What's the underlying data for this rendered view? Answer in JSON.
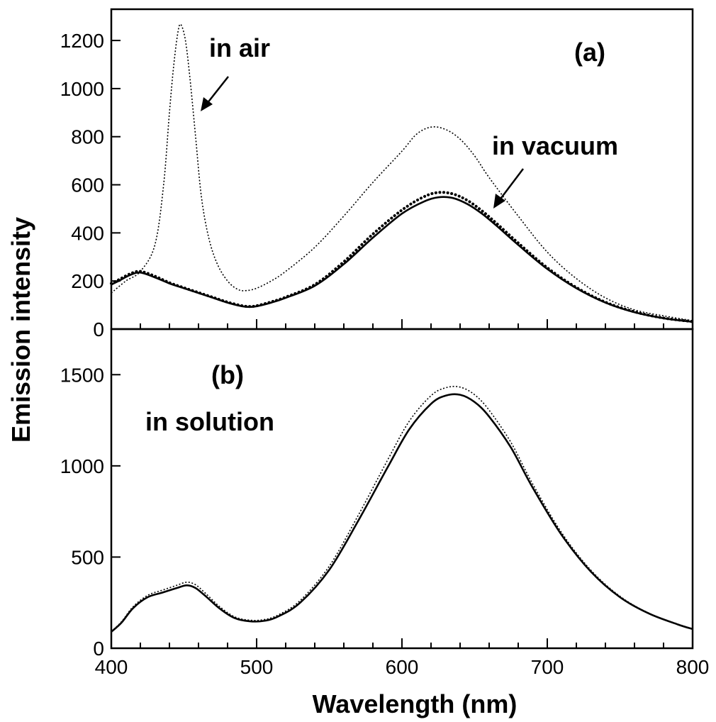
{
  "chart_data": [
    {
      "panel": "(a)",
      "type": "line",
      "xlabel": "Wavelength (nm)",
      "ylabel": "Emission intensity",
      "xlim": [
        400,
        800
      ],
      "ylim": [
        0,
        1330
      ],
      "xticks": [
        "400",
        "500",
        "600",
        "700",
        "800"
      ],
      "yticks": [
        "0",
        "200",
        "400",
        "600",
        "800",
        "1000",
        "1200"
      ],
      "annotations": [
        "(a)",
        "in air",
        "in vacuum"
      ],
      "series": [
        {
          "style": "fine-dotted",
          "points": [
            [
              400,
              150
            ],
            [
              410,
              200
            ],
            [
              420,
              240
            ],
            [
              430,
              350
            ],
            [
              436,
              600
            ],
            [
              440,
              900
            ],
            [
              443,
              1100
            ],
            [
              446,
              1240
            ],
            [
              448,
              1265
            ],
            [
              451,
              1200
            ],
            [
              454,
              1050
            ],
            [
              458,
              800
            ],
            [
              462,
              550
            ],
            [
              467,
              380
            ],
            [
              473,
              270
            ],
            [
              480,
              200
            ],
            [
              487,
              165
            ],
            [
              493,
              160
            ],
            [
              500,
              170
            ],
            [
              510,
              200
            ],
            [
              520,
              240
            ],
            [
              540,
              340
            ],
            [
              560,
              470
            ],
            [
              580,
              610
            ],
            [
              600,
              740
            ],
            [
              610,
              810
            ],
            [
              620,
              840
            ],
            [
              630,
              830
            ],
            [
              640,
              790
            ],
            [
              650,
              720
            ],
            [
              660,
              630
            ],
            [
              680,
              470
            ],
            [
              700,
              320
            ],
            [
              720,
              210
            ],
            [
              740,
              130
            ],
            [
              760,
              80
            ],
            [
              780,
              55
            ],
            [
              800,
              35
            ]
          ]
        },
        {
          "style": "solid",
          "points": [
            [
              400,
              185
            ],
            [
              405,
              200
            ],
            [
              413,
              225
            ],
            [
              420,
              235
            ],
            [
              430,
              215
            ],
            [
              440,
              190
            ],
            [
              450,
              170
            ],
            [
              460,
              150
            ],
            [
              470,
              130
            ],
            [
              480,
              110
            ],
            [
              490,
              95
            ],
            [
              495,
              92
            ],
            [
              500,
              95
            ],
            [
              510,
              110
            ],
            [
              520,
              130
            ],
            [
              540,
              180
            ],
            [
              560,
              270
            ],
            [
              580,
              380
            ],
            [
              600,
              480
            ],
            [
              615,
              530
            ],
            [
              625,
              548
            ],
            [
              635,
              545
            ],
            [
              645,
              520
            ],
            [
              655,
              480
            ],
            [
              665,
              430
            ],
            [
              680,
              350
            ],
            [
              700,
              250
            ],
            [
              720,
              170
            ],
            [
              740,
              110
            ],
            [
              760,
              70
            ],
            [
              780,
              45
            ],
            [
              800,
              30
            ]
          ]
        },
        {
          "style": "heavy-dotted",
          "points": [
            [
              400,
              190
            ],
            [
              405,
              205
            ],
            [
              413,
              230
            ],
            [
              420,
              240
            ],
            [
              430,
              220
            ],
            [
              440,
              193
            ],
            [
              450,
              172
            ],
            [
              460,
              152
            ],
            [
              470,
              132
            ],
            [
              480,
              112
            ],
            [
              490,
              97
            ],
            [
              495,
              94
            ],
            [
              500,
              97
            ],
            [
              510,
              113
            ],
            [
              520,
              133
            ],
            [
              540,
              185
            ],
            [
              560,
              280
            ],
            [
              580,
              395
            ],
            [
              600,
              495
            ],
            [
              615,
              550
            ],
            [
              625,
              568
            ],
            [
              635,
              562
            ],
            [
              645,
              535
            ],
            [
              655,
              492
            ],
            [
              665,
              440
            ],
            [
              680,
              358
            ],
            [
              700,
              255
            ],
            [
              720,
              173
            ],
            [
              740,
              112
            ],
            [
              760,
              72
            ],
            [
              780,
              46
            ],
            [
              800,
              31
            ]
          ]
        }
      ]
    },
    {
      "panel": "(b)",
      "type": "line",
      "xlabel": "Wavelength (nm)",
      "ylabel": "Emission intensity",
      "xlim": [
        400,
        800
      ],
      "ylim": [
        0,
        1750
      ],
      "xticks": [
        "400",
        "500",
        "600",
        "700",
        "800"
      ],
      "yticks": [
        "0",
        "500",
        "1000",
        "1500"
      ],
      "annotations": [
        "(b)",
        "in solution"
      ],
      "series": [
        {
          "style": "solid",
          "points": [
            [
              400,
              90
            ],
            [
              407,
              140
            ],
            [
              415,
              220
            ],
            [
              425,
              280
            ],
            [
              435,
              305
            ],
            [
              445,
              330
            ],
            [
              452,
              345
            ],
            [
              458,
              330
            ],
            [
              465,
              285
            ],
            [
              475,
              215
            ],
            [
              485,
              165
            ],
            [
              495,
              148
            ],
            [
              505,
              150
            ],
            [
              515,
              175
            ],
            [
              530,
              250
            ],
            [
              550,
              430
            ],
            [
              570,
              700
            ],
            [
              590,
              990
            ],
            [
              605,
              1200
            ],
            [
              620,
              1340
            ],
            [
              630,
              1385
            ],
            [
              640,
              1390
            ],
            [
              650,
              1350
            ],
            [
              660,
              1270
            ],
            [
              675,
              1100
            ],
            [
              690,
              880
            ],
            [
              710,
              620
            ],
            [
              730,
              420
            ],
            [
              750,
              280
            ],
            [
              770,
              190
            ],
            [
              790,
              130
            ],
            [
              800,
              105
            ]
          ]
        },
        {
          "style": "fine-dotted",
          "points": [
            [
              400,
              92
            ],
            [
              407,
              145
            ],
            [
              415,
              228
            ],
            [
              425,
              290
            ],
            [
              435,
              318
            ],
            [
              445,
              345
            ],
            [
              452,
              362
            ],
            [
              458,
              348
            ],
            [
              465,
              300
            ],
            [
              475,
              225
            ],
            [
              485,
              172
            ],
            [
              495,
              154
            ],
            [
              505,
              157
            ],
            [
              515,
              183
            ],
            [
              530,
              262
            ],
            [
              550,
              450
            ],
            [
              570,
              730
            ],
            [
              590,
              1030
            ],
            [
              605,
              1245
            ],
            [
              620,
              1385
            ],
            [
              630,
              1428
            ],
            [
              640,
              1432
            ],
            [
              650,
              1390
            ],
            [
              660,
              1305
            ],
            [
              675,
              1128
            ],
            [
              690,
              900
            ],
            [
              710,
              632
            ],
            [
              730,
              428
            ],
            [
              750,
              285
            ],
            [
              770,
              192
            ],
            [
              790,
              132
            ],
            [
              800,
              106
            ]
          ]
        }
      ]
    }
  ]
}
